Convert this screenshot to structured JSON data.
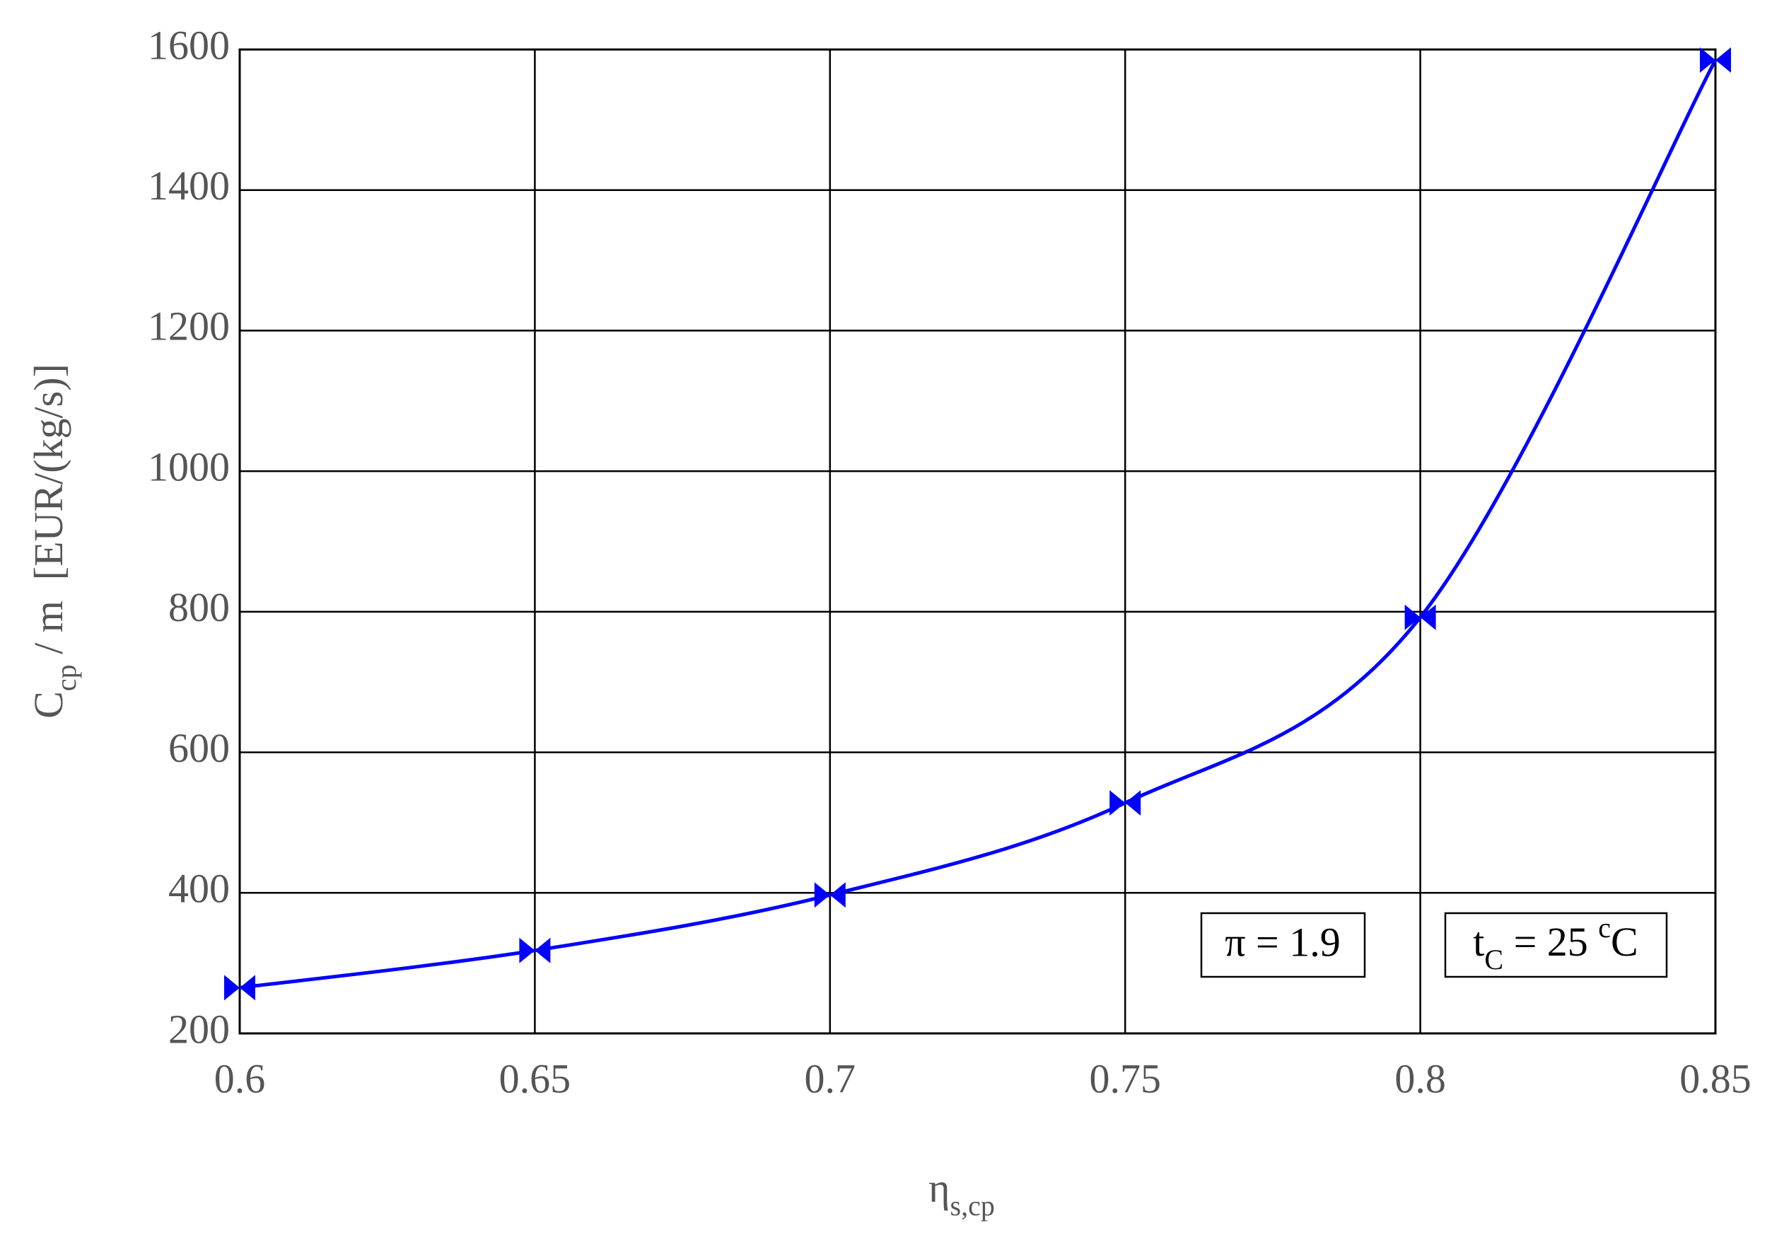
{
  "chart_data": {
    "type": "line",
    "x": [
      0.6,
      0.65,
      0.7,
      0.75,
      0.8,
      0.85
    ],
    "series": [
      {
        "color": "#0000ff",
        "values": [
          265,
          318,
          397,
          528,
          792,
          1585
        ]
      }
    ],
    "xlim": [
      0.6,
      0.85
    ],
    "xticks": [
      0.6,
      0.65,
      0.7,
      0.75,
      0.8,
      0.85
    ],
    "ylim": [
      200,
      1600
    ],
    "yticks": [
      200,
      400,
      600,
      800,
      1000,
      1200,
      1400,
      1600
    ],
    "grid": true,
    "ylabel": {
      "main": "C",
      "sub": "cp",
      "rest": " / m  [EUR/(kg/s)]"
    },
    "xlabel": {
      "main": "η",
      "sub": "s,cp"
    },
    "annotations": [
      {
        "text": "π = 1.9"
      },
      {
        "main": "t",
        "sub": "C",
        "rest": " = 25 ",
        "sup": "c",
        "end": "C"
      }
    ]
  }
}
